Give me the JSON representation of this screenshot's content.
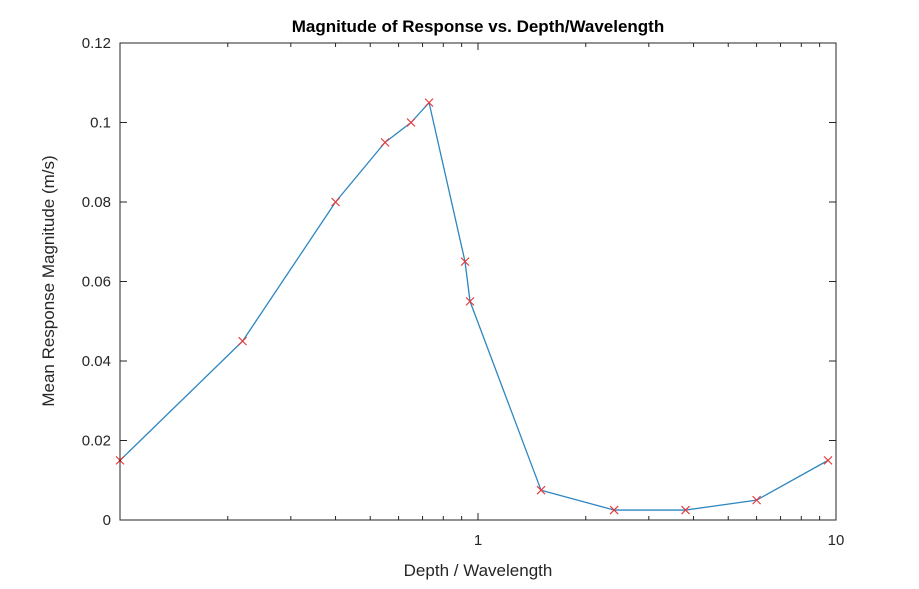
{
  "chart_data": {
    "type": "line",
    "title": "Magnitude of Response vs. Depth/Wavelength",
    "xlabel": "Depth / Wavelength",
    "ylabel": "Mean Response Magnitude (m/s)",
    "x_scale": "log",
    "xlim": [
      0.1,
      10
    ],
    "ylim": [
      0,
      0.12
    ],
    "x_ticks": [
      1,
      10
    ],
    "x_tick_labels": [
      "1",
      "10"
    ],
    "y_ticks": [
      0,
      0.02,
      0.04,
      0.06,
      0.08,
      0.1,
      0.12
    ],
    "y_tick_labels": [
      "0",
      "0.02",
      "0.04",
      "0.06",
      "0.08",
      "0.1",
      "0.12"
    ],
    "grid": false,
    "box": true,
    "series": [
      {
        "x": [
          0.1,
          0.22,
          0.4,
          0.55,
          0.65,
          0.73,
          0.92,
          0.95,
          1.5,
          2.4,
          3.8,
          6,
          9.5
        ],
        "y": [
          0.015,
          0.045,
          0.08,
          0.095,
          0.1,
          0.105,
          0.065,
          0.055,
          0.0075,
          0.0025,
          0.0025,
          0.005,
          0.015
        ],
        "line_color": "#2E86C1",
        "marker": "x",
        "marker_color": "#E8393A"
      }
    ]
  }
}
